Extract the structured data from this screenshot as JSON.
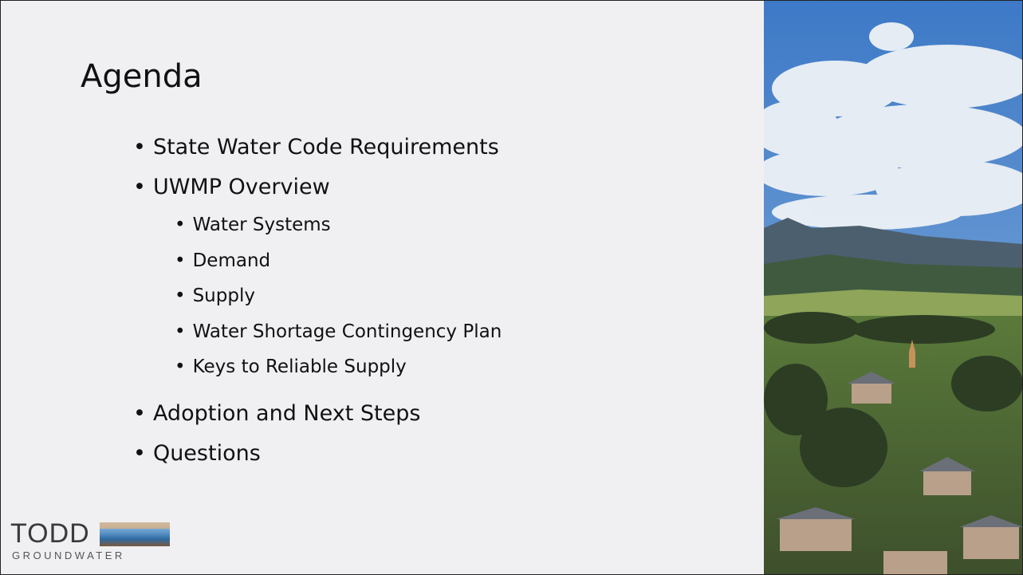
{
  "slide": {
    "title": "Agenda",
    "items": [
      {
        "text": "State Water Code Requirements"
      },
      {
        "text": "UWMP Overview",
        "subitems": [
          "Water Systems",
          "Demand",
          "Supply",
          "Water Shortage Contingency Plan",
          "Keys to Reliable Supply"
        ]
      },
      {
        "text": "Adoption and Next Steps"
      },
      {
        "text": "Questions"
      }
    ],
    "logo": {
      "name": "TODD",
      "tagline": "GROUNDWATER"
    }
  }
}
